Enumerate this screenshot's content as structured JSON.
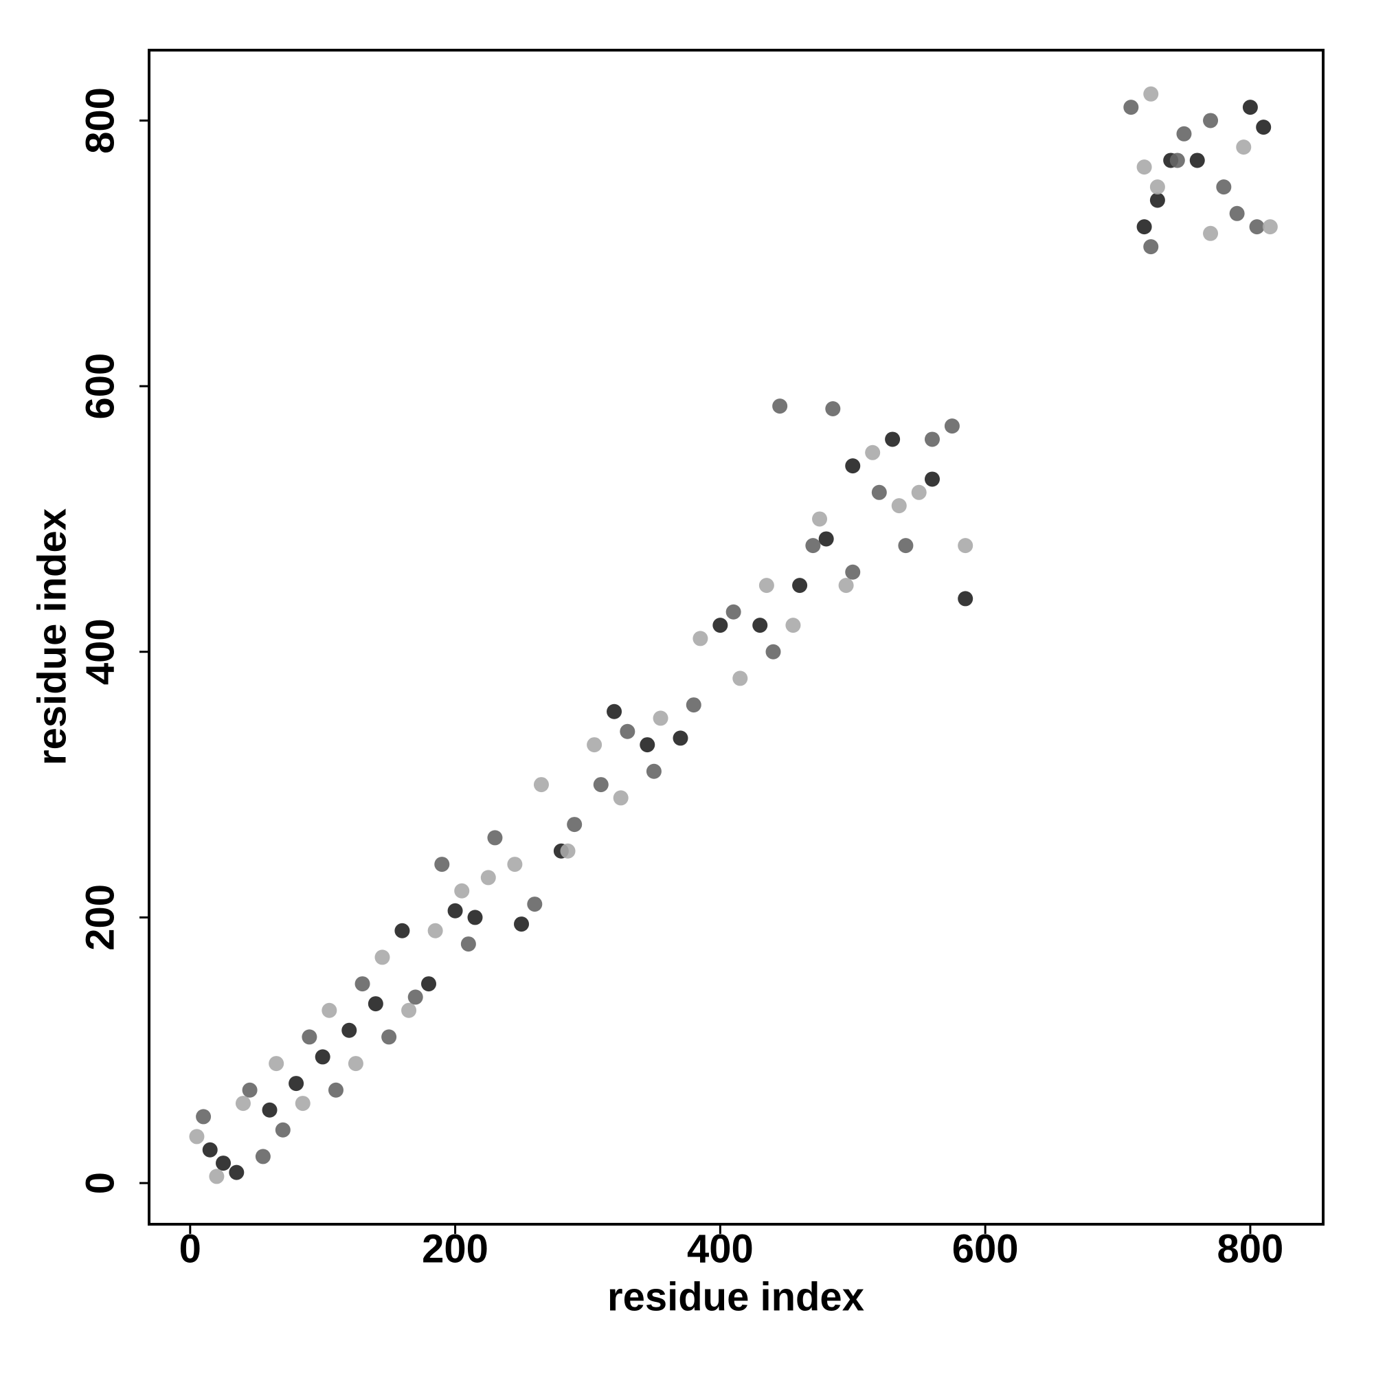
{
  "chart_data": {
    "type": "scatter",
    "xlabel": "residue index",
    "ylabel": "residue index",
    "xlim": [
      -31,
      855
    ],
    "ylim": [
      -31,
      853
    ],
    "xticks": [
      0,
      200,
      400,
      600,
      800
    ],
    "yticks": [
      0,
      200,
      400,
      600,
      800
    ],
    "grid": false,
    "series": [
      {
        "color": "#222222",
        "x": [
          15,
          25,
          35,
          60,
          80,
          100,
          120,
          140,
          160,
          180,
          200,
          215,
          250,
          280,
          320,
          345,
          370,
          400,
          430,
          460,
          500,
          530,
          560,
          585,
          480,
          720,
          730,
          800,
          810,
          760,
          740
        ],
        "y": [
          25,
          15,
          8,
          55,
          75,
          95,
          115,
          135,
          190,
          150,
          205,
          200,
          195,
          250,
          355,
          330,
          335,
          420,
          420,
          450,
          540,
          560,
          530,
          440,
          485,
          720,
          740,
          810,
          795,
          770,
          770
        ]
      },
      {
        "color": "#666666",
        "x": [
          10,
          45,
          55,
          70,
          90,
          110,
          130,
          150,
          170,
          190,
          210,
          230,
          260,
          290,
          310,
          330,
          350,
          380,
          410,
          440,
          470,
          500,
          520,
          540,
          560,
          575,
          445,
          485,
          710,
          725,
          750,
          780,
          790,
          805,
          770,
          745
        ],
        "y": [
          50,
          70,
          20,
          40,
          110,
          70,
          150,
          110,
          140,
          240,
          180,
          260,
          210,
          270,
          300,
          340,
          310,
          360,
          430,
          400,
          480,
          460,
          520,
          480,
          560,
          570,
          585,
          583,
          810,
          705,
          790,
          750,
          730,
          720,
          800,
          770
        ]
      },
      {
        "color": "#aaaaaa",
        "x": [
          5,
          20,
          40,
          65,
          85,
          105,
          125,
          145,
          165,
          185,
          205,
          225,
          245,
          265,
          285,
          305,
          325,
          355,
          385,
          415,
          435,
          455,
          475,
          495,
          515,
          535,
          550,
          585,
          725,
          770,
          795,
          815,
          720,
          730
        ],
        "y": [
          35,
          5,
          60,
          90,
          60,
          130,
          90,
          170,
          130,
          190,
          220,
          230,
          240,
          300,
          250,
          330,
          290,
          350,
          410,
          380,
          450,
          420,
          500,
          450,
          550,
          510,
          520,
          480,
          820,
          715,
          780,
          720,
          765,
          750
        ]
      }
    ]
  }
}
